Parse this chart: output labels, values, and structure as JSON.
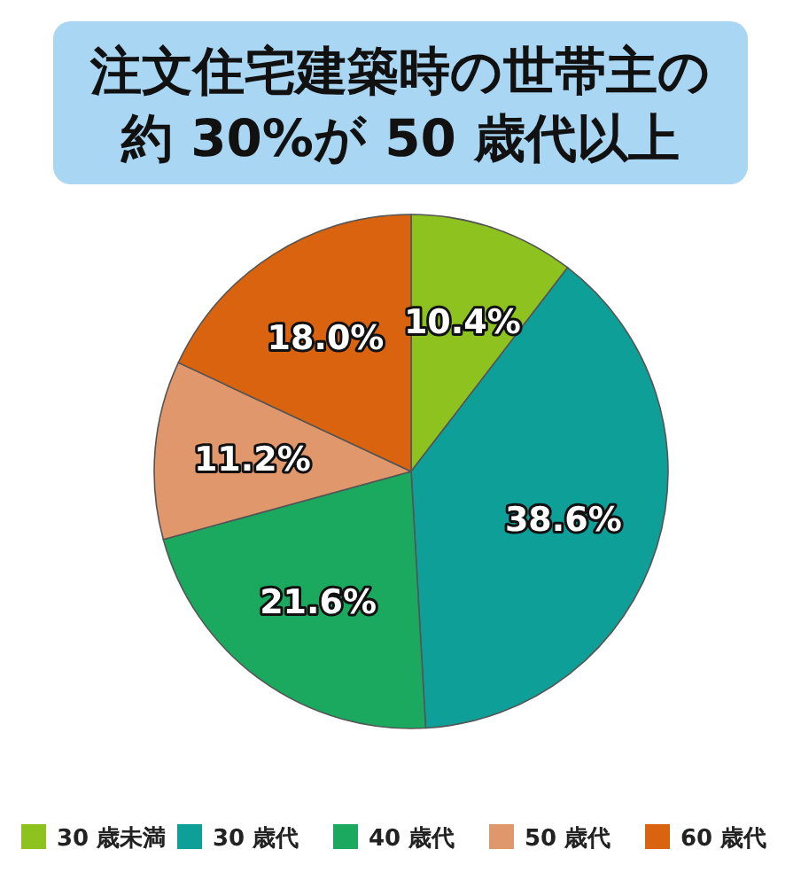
{
  "chart_data": {
    "type": "pie",
    "title": "注文住宅建築時の世帯主の約 30%が 50 歳代以上",
    "categories": [
      "30 歳未満",
      "30 歳代",
      "40 歳代",
      "50 歳代",
      "60 歳代"
    ],
    "values": [
      10.4,
      38.6,
      21.6,
      11.2,
      18.0
    ],
    "colors": [
      "#8dc21f",
      "#0e9f98",
      "#1aa95f",
      "#e0976c",
      "#d9630f"
    ],
    "value_labels": [
      "10.4%",
      "38.6%",
      "21.6%",
      "11.2%",
      "18.0%"
    ],
    "legend": "bottom"
  }
}
